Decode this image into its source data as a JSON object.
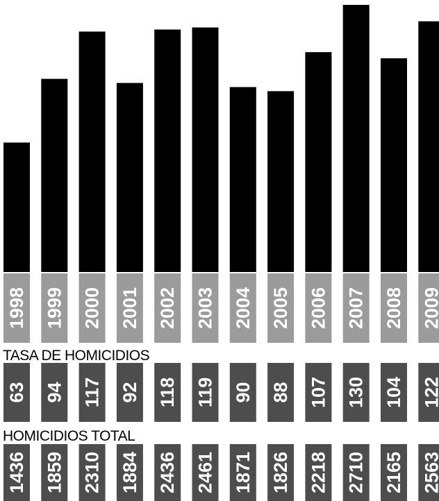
{
  "chart_data": {
    "type": "bar",
    "categories": [
      "1998",
      "1999",
      "2000",
      "2001",
      "2002",
      "2003",
      "2004",
      "2005",
      "2006",
      "2007",
      "2008",
      "2009"
    ],
    "series": [
      {
        "name": "TASA DE HOMICIDIOS",
        "values": [
          63,
          94,
          117,
          92,
          118,
          119,
          90,
          88,
          107,
          130,
          104,
          122
        ]
      }
    ],
    "table_rows": [
      {
        "label": "TASA DE HOMICIDIOS",
        "values": [
          "63",
          "94",
          "117",
          "92",
          "118",
          "119",
          "90",
          "88",
          "107",
          "130",
          "104",
          "122"
        ]
      },
      {
        "label": "HOMICIDIOS TOTAL",
        "values": [
          "1436",
          "1859",
          "2310",
          "1884",
          "2436",
          "2461",
          "1871",
          "1826",
          "2218",
          "2710",
          "2165",
          "2563"
        ]
      }
    ],
    "title": "",
    "xlabel": "",
    "ylabel": "",
    "ylim": [
      0,
      130
    ],
    "grid": false,
    "legend": "none",
    "colors": {
      "bar": "#000000",
      "year_cell": "#9b9b9b",
      "value_cell": "#4d4d4d",
      "cell_text": "#ffffff",
      "label_text": "#000000"
    }
  }
}
